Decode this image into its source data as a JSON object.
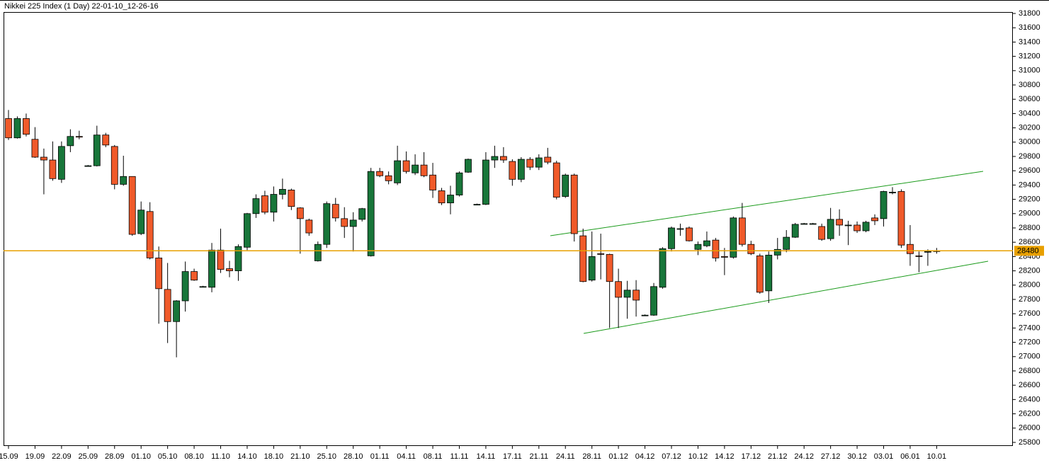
{
  "chart_data": {
    "type": "candlestick",
    "title": "Nikkei 225 Index (1 Day) 22-01-10_12-26-16",
    "categories": [
      "15.09",
      null,
      null,
      "19.09",
      null,
      null,
      "22.09",
      null,
      null,
      "25.09",
      null,
      null,
      "28.09",
      null,
      null,
      "01.10",
      null,
      null,
      "05.10",
      null,
      null,
      "08.10",
      null,
      null,
      "11.10",
      null,
      null,
      "14.10",
      null,
      null,
      "18.10",
      null,
      null,
      "21.10",
      null,
      null,
      "25.10",
      null,
      null,
      "28.10",
      null,
      null,
      "01.11",
      null,
      null,
      "04.11",
      null,
      null,
      "08.11",
      null,
      null,
      "11.11",
      null,
      null,
      "14.11",
      null,
      null,
      "17.11",
      null,
      null,
      "21.11",
      null,
      null,
      "24.11",
      null,
      null,
      "28.11",
      null,
      null,
      "01.12",
      null,
      null,
      "04.12",
      null,
      null,
      "07.12",
      null,
      null,
      "10.12",
      null,
      null,
      "14.12",
      null,
      null,
      "17.12",
      null,
      null,
      "21.12",
      null,
      null,
      "24.12",
      null,
      null,
      "27.12",
      null,
      null,
      "30.12",
      null,
      null,
      "03.01",
      null,
      null,
      "06.01",
      null,
      null,
      "10.01"
    ],
    "open": [
      30330,
      30060,
      30330,
      30040,
      29790,
      29750,
      29480,
      29950,
      30080,
      29670,
      29670,
      30100,
      29940,
      29410,
      29520,
      28720,
      29030,
      28380,
      27940,
      27490,
      27780,
      28190,
      27980,
      27970,
      28490,
      28230,
      28200,
      28530,
      29000,
      29250,
      29020,
      29270,
      29330,
      29080,
      28910,
      28340,
      28570,
      29130,
      28930,
      28820,
      28920,
      28410,
      29590,
      29530,
      29430,
      29740,
      29570,
      29680,
      29540,
      29320,
      29150,
      29260,
      29580,
      29130,
      29130,
      29750,
      29800,
      29730,
      29480,
      29760,
      29650,
      29790,
      29710,
      29240,
      29540,
      28690,
      28070,
      28440,
      28430,
      28050,
      27830,
      27930,
      27580,
      27580,
      27970,
      28510,
      28790,
      28800,
      28500,
      28550,
      28630,
      28400,
      28390,
      28940,
      28570,
      28410,
      27920,
      28420,
      28500,
      28670,
      28860,
      28860,
      28820,
      28650,
      28920,
      28840,
      28840,
      28760,
      28940,
      28930,
      29300,
      29310,
      28570,
      28410,
      28470,
      28480
    ],
    "high": [
      30450,
      30360,
      30400,
      30210,
      29910,
      30010,
      30010,
      30180,
      30160,
      29680,
      30230,
      30130,
      29960,
      29810,
      29520,
      29170,
      29160,
      28540,
      28310,
      27790,
      28330,
      28230,
      27990,
      28590,
      28790,
      28340,
      28570,
      29010,
      29270,
      29320,
      29380,
      29490,
      29350,
      29090,
      28930,
      28610,
      29170,
      29220,
      29090,
      29020,
      29080,
      29640,
      29640,
      29590,
      29950,
      29870,
      29830,
      29860,
      29710,
      29360,
      29390,
      29590,
      29770,
      29140,
      29860,
      29950,
      29930,
      29760,
      29790,
      29790,
      29830,
      29920,
      29740,
      29560,
      29560,
      28790,
      28750,
      28720,
      28440,
      28230,
      28060,
      28070,
      27590,
      28030,
      28530,
      28820,
      28860,
      28820,
      28610,
      28750,
      28660,
      28520,
      28960,
      29150,
      28620,
      28440,
      28470,
      28660,
      28770,
      28870,
      28870,
      28870,
      28860,
      29080,
      29060,
      28900,
      28890,
      28900,
      28990,
      29320,
      29370,
      29340,
      28840,
      28470,
      28500,
      28520
    ],
    "low": [
      30030,
      30050,
      30080,
      29780,
      29270,
      29460,
      29430,
      29860,
      30040,
      29660,
      29660,
      29930,
      29340,
      29390,
      28690,
      28700,
      28360,
      27460,
      27190,
      26990,
      27630,
      28060,
      27970,
      27900,
      28170,
      28110,
      28060,
      28490,
      28940,
      28990,
      28890,
      29200,
      29050,
      28440,
      28690,
      28330,
      28520,
      28890,
      28660,
      28470,
      28890,
      28400,
      29510,
      29410,
      29400,
      29560,
      29540,
      29510,
      29220,
      29120,
      28990,
      29240,
      29570,
      29120,
      29120,
      29640,
      29710,
      29390,
      29440,
      29610,
      29610,
      29690,
      29200,
      29220,
      28610,
      28040,
      28050,
      28080,
      27400,
      27400,
      27530,
      27560,
      27570,
      27570,
      27950,
      28470,
      28690,
      28610,
      28420,
      28530,
      28330,
      28140,
      28370,
      28540,
      28420,
      27880,
      27750,
      28360,
      28460,
      28660,
      28850,
      28850,
      28620,
      28620,
      28690,
      28560,
      28730,
      28740,
      28840,
      28820,
      29270,
      28520,
      28270,
      28180,
      28270,
      28440
    ],
    "close": [
      30060,
      30330,
      30110,
      29790,
      29750,
      29490,
      29940,
      30080,
      30070,
      29670,
      30100,
      29960,
      29410,
      29520,
      28710,
      29050,
      28380,
      27950,
      27490,
      27780,
      28190,
      28070,
      27980,
      28490,
      28220,
      28200,
      28540,
      29000,
      29210,
      29020,
      29270,
      29340,
      29100,
      28930,
      28730,
      28570,
      29140,
      28940,
      28820,
      28910,
      29070,
      29590,
      29530,
      29460,
      29740,
      29590,
      29680,
      29530,
      29330,
      29150,
      29260,
      29570,
      29760,
      29130,
      29750,
      29800,
      29750,
      29480,
      29760,
      29650,
      29780,
      29720,
      29230,
      29540,
      28720,
      28050,
      28400,
      28430,
      28050,
      27830,
      27930,
      27790,
      27580,
      27980,
      28510,
      28800,
      28790,
      28620,
      28570,
      28620,
      28380,
      28390,
      28940,
      28570,
      28440,
      27900,
      28420,
      28500,
      28670,
      28850,
      28860,
      28860,
      28640,
      28920,
      28840,
      28840,
      28760,
      28880,
      28900,
      29310,
      29300,
      28560,
      28440,
      28400,
      28470,
      28480
    ],
    "up_color": "#18763a",
    "down_color": "#f05a2a",
    "current_price": 28480,
    "price_line_color": "#e8a000",
    "ylim": [
      25750,
      31820
    ],
    "yticks": [
      25800,
      26000,
      26200,
      26400,
      26600,
      26800,
      27000,
      27200,
      27400,
      27600,
      27800,
      28000,
      28200,
      28400,
      28600,
      28800,
      29000,
      29200,
      29400,
      29600,
      29800,
      30000,
      30200,
      30400,
      30600,
      30800,
      31000,
      31200,
      31400,
      31600,
      31800
    ]
  }
}
